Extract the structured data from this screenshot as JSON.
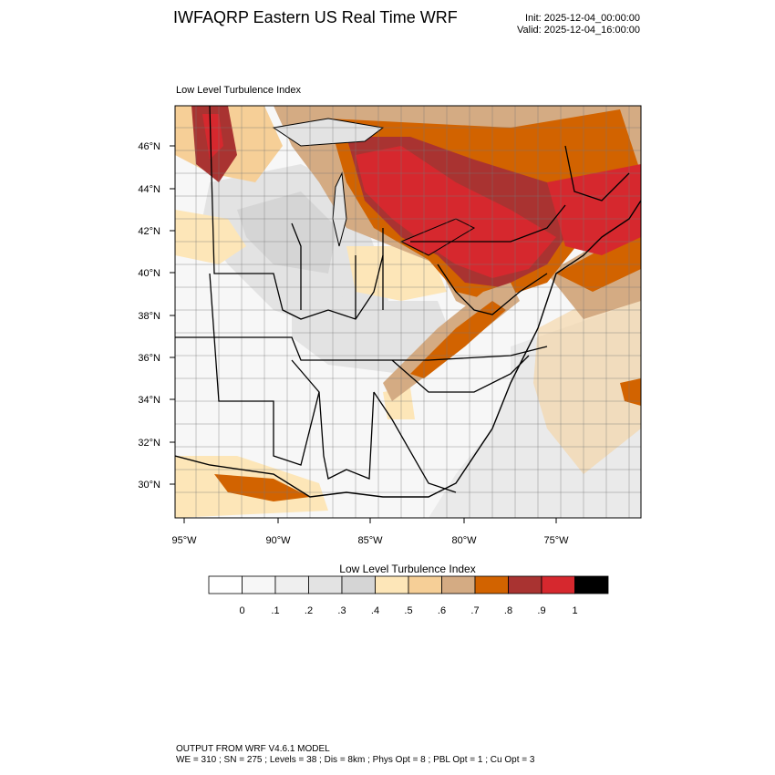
{
  "header": {
    "title": "IWFAQRP Eastern US Real Time WRF",
    "init": "Init: 2025-12-04_00:00:00",
    "valid": "Valid: 2025-12-04_16:00:00"
  },
  "plot": {
    "label": "Low Level Turbulence Index",
    "lat_labels": [
      "46°N",
      "44°N",
      "42°N",
      "40°N",
      "38°N",
      "36°N",
      "34°N",
      "32°N",
      "30°N"
    ],
    "lon_labels": [
      "95°W",
      "90°W",
      "85°W",
      "80°W",
      "75°W"
    ]
  },
  "colorbar": {
    "title": "Low Level Turbulence Index",
    "labels": [
      "0",
      ".1",
      ".2",
      ".3",
      ".4",
      ".5",
      ".6",
      ".7",
      ".8",
      ".9",
      "1"
    ],
    "colors": [
      "#ffffff",
      "#f7f7f7",
      "#efefef",
      "#e3e3e3",
      "#d5d5d5",
      "#fde6b8",
      "#f6cf97",
      "#d4ab83",
      "#d26300",
      "#a93331",
      "#d6282e",
      "#000000"
    ]
  },
  "footer": {
    "line1": "OUTPUT FROM WRF V4.6.1 MODEL",
    "line2": "WE = 310 ; SN = 275 ; Levels = 38 ; Dis = 8km ; Phys Opt = 8 ; PBL Opt = 1 ; Cu Opt = 3"
  }
}
